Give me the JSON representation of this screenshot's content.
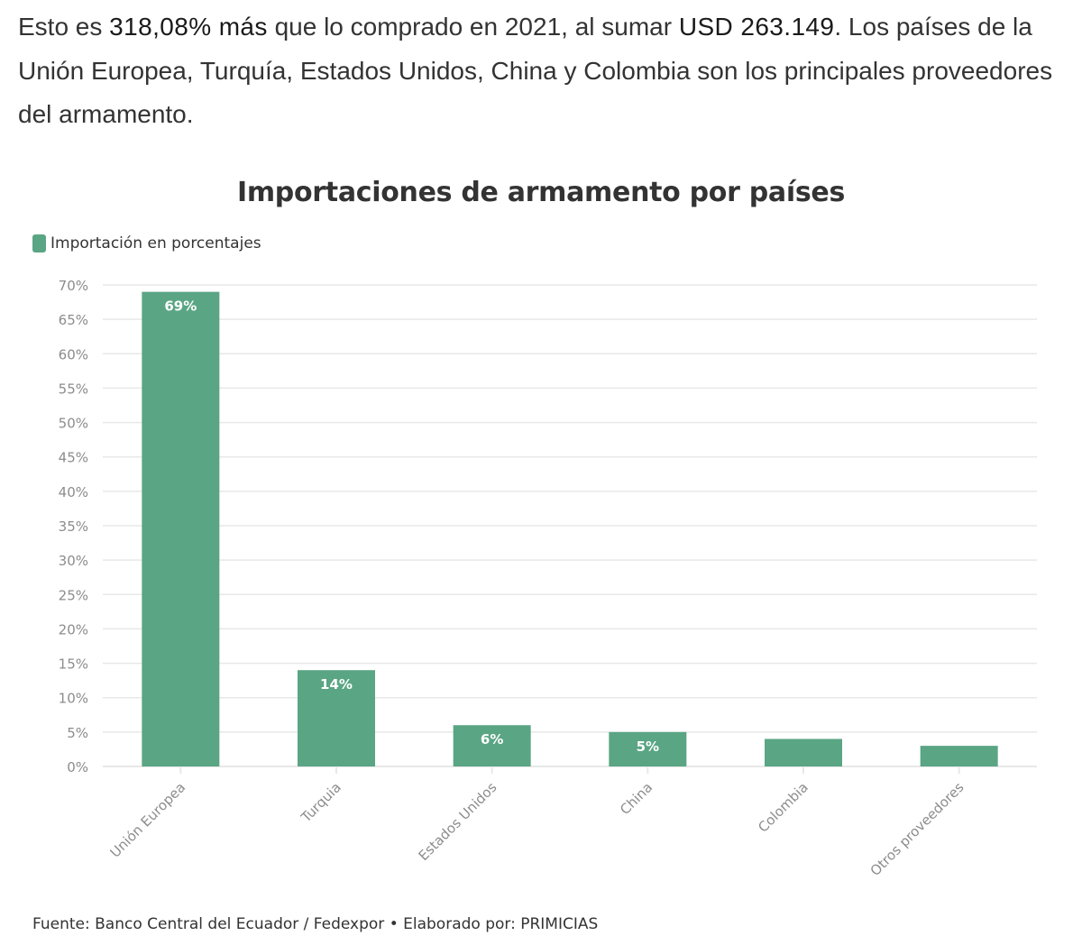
{
  "article": {
    "text_before": "Esto es ",
    "highlight_percent": "318,08% más",
    "text_middle": " que lo comprado en 2021, al sumar ",
    "highlight_amount": "USD 263.149",
    "text_after": ". Los países de la Unión Europea, Turquía, Estados Unidos, China y Colombia son los principales proveedores del armamento."
  },
  "chart_data": {
    "type": "bar",
    "title": "Importaciones de armamento por países",
    "xlabel": "",
    "ylabel": "",
    "categories": [
      "Unión Europea",
      "Turquia",
      "Estados Unidos",
      "China",
      "Colombia",
      "Otros proveedores"
    ],
    "series": [
      {
        "name": "Importación en porcentajes",
        "values": [
          69,
          14,
          6,
          5,
          4,
          3
        ],
        "data_labels": [
          "69%",
          "14%",
          "6%",
          "5%",
          "",
          ""
        ],
        "color": "#5aa584"
      }
    ],
    "ylim": [
      0,
      70
    ],
    "yticks": [
      0,
      5,
      10,
      15,
      20,
      25,
      30,
      35,
      40,
      45,
      50,
      55,
      60,
      65,
      70
    ],
    "ytick_labels": [
      "0%",
      "5%",
      "10%",
      "15%",
      "20%",
      "25%",
      "30%",
      "35%",
      "40%",
      "45%",
      "50%",
      "55%",
      "60%",
      "65%",
      "70%"
    ],
    "grid": true,
    "legend_position": "top-left",
    "source": "Fuente: Banco Central del Ecuador / Fedexpor • Elaborado por: PRIMICIAS"
  },
  "colors": {
    "bar": "#5aa584",
    "grid": "#e8e8e8",
    "axis_text": "#8c8c8c",
    "text": "#333333"
  }
}
